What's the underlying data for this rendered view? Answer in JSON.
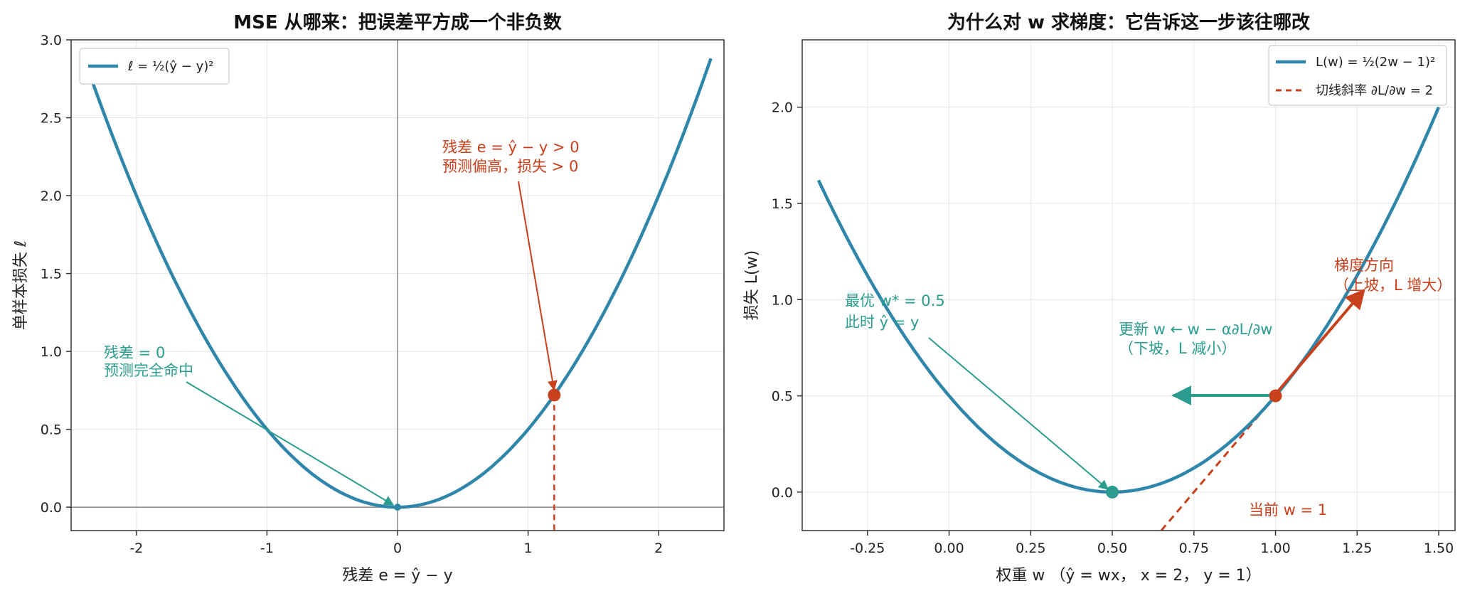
{
  "colors": {
    "curve": "#2e86ab",
    "red": "#c8401c",
    "green": "#2a9d8f",
    "axis": "#333333",
    "zero_line": "#888888"
  },
  "chart_data": [
    {
      "type": "line",
      "title": "MSE 从哪来：把误差平方成一个非负数",
      "xlabel": "残差 e = ŷ − y",
      "ylabel": "单样本损失 ℓ",
      "xlim": [
        -2.5,
        2.5
      ],
      "ylim": [
        -0.15,
        3.0
      ],
      "xticks": [
        -2,
        -1,
        0,
        1,
        2
      ],
      "xtick_labels": [
        "-2",
        "-1",
        "0",
        "1",
        "2"
      ],
      "yticks": [
        0.0,
        0.5,
        1.0,
        1.5,
        2.0,
        2.5,
        3.0
      ],
      "ytick_labels": [
        "0.0",
        "0.5",
        "1.0",
        "1.5",
        "2.0",
        "2.5",
        "3.0"
      ],
      "grid": true,
      "legend_position": "top-left",
      "series": [
        {
          "name": "ℓ = ½(ŷ − y)²",
          "x": [
            -2.4,
            -2.0,
            -1.6,
            -1.2,
            -0.8,
            -0.4,
            0.0,
            0.4,
            0.8,
            1.2,
            1.6,
            2.0,
            2.4
          ],
          "y": [
            2.88,
            2.0,
            1.28,
            0.72,
            0.32,
            0.08,
            0.0,
            0.08,
            0.32,
            0.72,
            1.28,
            2.0,
            2.88
          ]
        }
      ],
      "points": [
        {
          "label": "minimum",
          "x": 0.0,
          "y": 0.0
        },
        {
          "label": "positive-residual",
          "x": 1.2,
          "y": 0.72
        }
      ],
      "annotations": [
        {
          "lines": [
            "残差 = 0",
            "预测完全命中"
          ]
        },
        {
          "lines": [
            "残差 e = ŷ − y > 0",
            "预测偏高，损失 > 0"
          ]
        }
      ]
    },
    {
      "type": "line",
      "title": "为什么对 w 求梯度：它告诉这一步该往哪改",
      "xlabel": "权重 w （ŷ = wx， x = 2， y = 1）",
      "ylabel": "损失 L(w)",
      "xlim": [
        -0.45,
        1.55
      ],
      "ylim": [
        -0.2,
        2.35
      ],
      "xticks": [
        -0.25,
        0.0,
        0.25,
        0.5,
        0.75,
        1.0,
        1.25,
        1.5
      ],
      "xtick_labels": [
        "-0.25",
        "0.00",
        "0.25",
        "0.50",
        "0.75",
        "1.00",
        "1.25",
        "1.50"
      ],
      "yticks": [
        0.0,
        0.5,
        1.0,
        1.5,
        2.0
      ],
      "ytick_labels": [
        "0.0",
        "0.5",
        "1.0",
        "1.5",
        "2.0"
      ],
      "grid": true,
      "legend_position": "top-right",
      "series": [
        {
          "name": "L(w) = ½(2w − 1)²",
          "x": [
            -0.4,
            -0.25,
            -0.1,
            0.0,
            0.1,
            0.25,
            0.4,
            0.5,
            0.6,
            0.75,
            0.9,
            1.0,
            1.1,
            1.25,
            1.4,
            1.5
          ],
          "y": [
            1.62,
            1.125,
            0.72,
            0.5,
            0.32,
            0.125,
            0.02,
            0.0,
            0.02,
            0.125,
            0.32,
            0.5,
            0.72,
            1.125,
            1.62,
            2.0
          ]
        },
        {
          "name": "切线斜率 ∂L/∂w = 2",
          "x": [
            0.65,
            1.0
          ],
          "y": [
            -0.2,
            0.5
          ]
        }
      ],
      "points": [
        {
          "label": "optimum",
          "x": 0.5,
          "y": 0.0
        },
        {
          "label": "current",
          "x": 1.0,
          "y": 0.5
        }
      ],
      "annotations": [
        {
          "lines": [
            "最优 w* = 0.5",
            "此时 ŷ = y"
          ]
        },
        {
          "lines": [
            "更新 w ← w − α∂L/∂w",
            "（下坡，L 减小）"
          ]
        },
        {
          "lines": [
            "梯度方向",
            "（上坡，L 增大）"
          ]
        },
        {
          "lines": [
            "当前 w = 1"
          ]
        }
      ]
    }
  ]
}
